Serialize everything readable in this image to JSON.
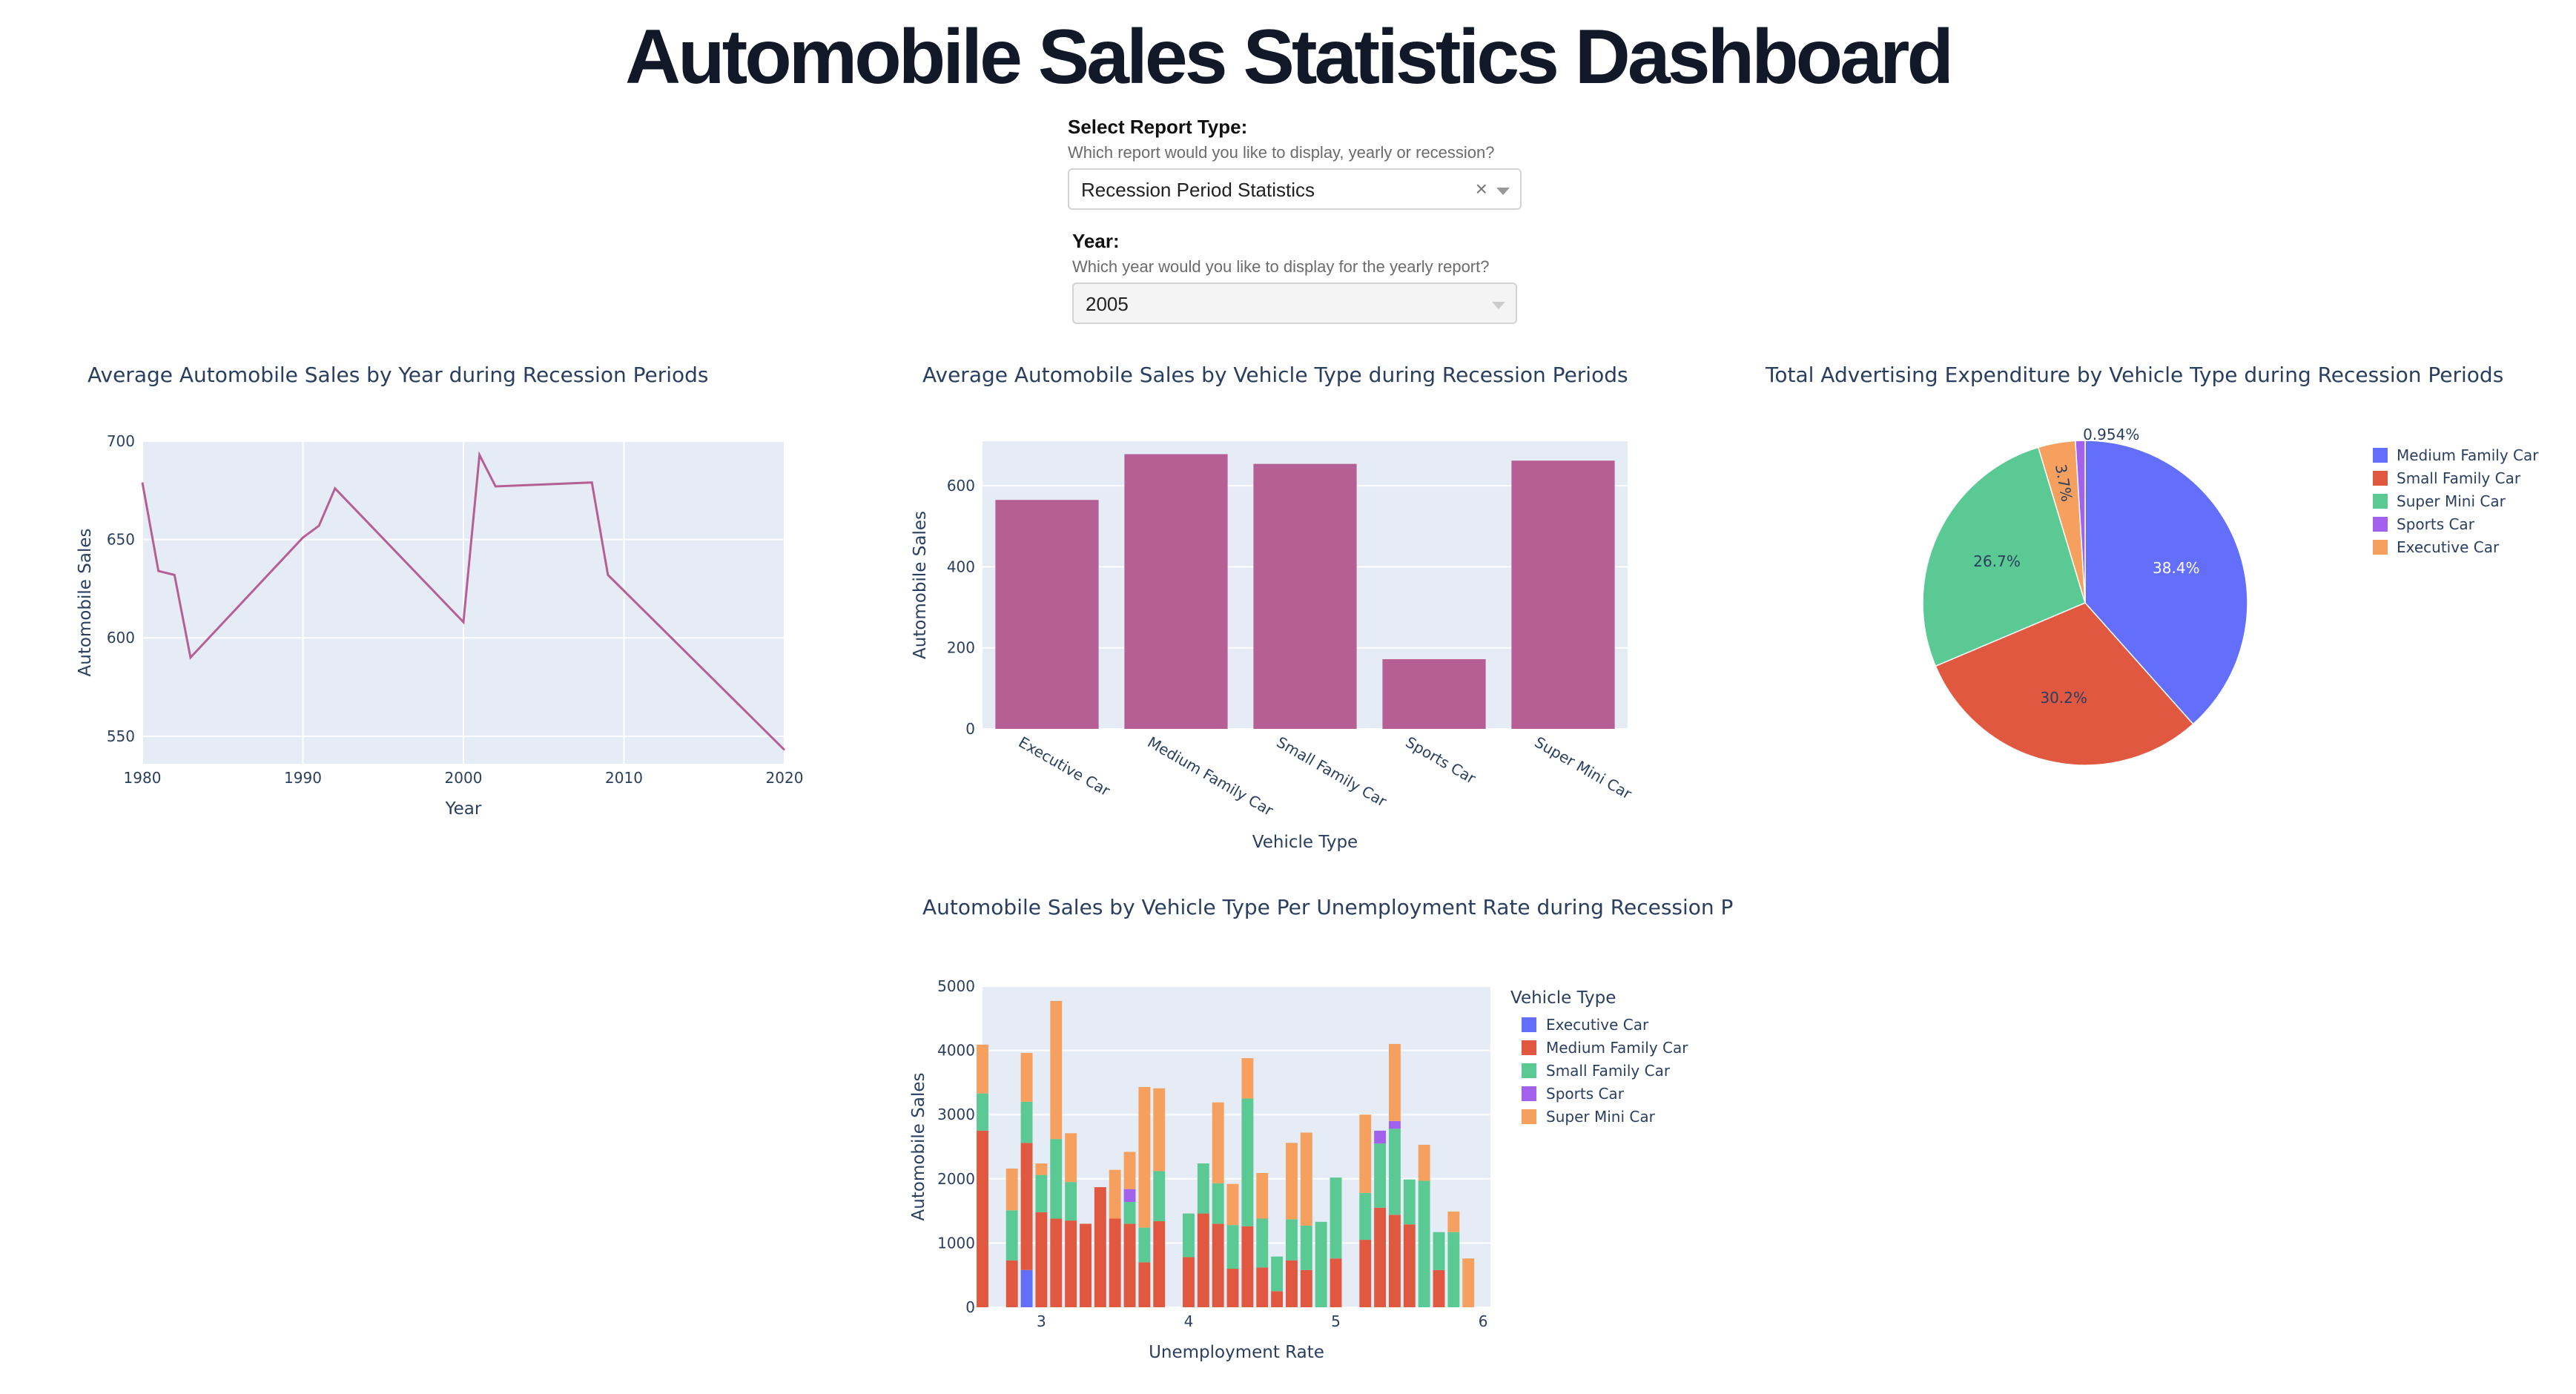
{
  "page": {
    "title": "Automobile Sales Statistics Dashboard"
  },
  "controls": {
    "report": {
      "label": "Select Report Type:",
      "help": "Which report would you like to display, yearly or recession?",
      "value": "Recession Period Statistics"
    },
    "year": {
      "label": "Year:",
      "help": "Which year would you like to display for the yearly report?",
      "value": "2005"
    }
  },
  "colors": {
    "plot_bg": "#e5ecf6",
    "line": "#b65f94",
    "bar": "#b65f94",
    "text": "#2a3f5f",
    "series": [
      "#636efa",
      "#e0583f",
      "#5ac994",
      "#a262ee",
      "#f5a05e"
    ]
  },
  "chart_data": [
    {
      "type": "line",
      "title": "Average Automobile Sales by Year during Recession Periods",
      "xlabel": "Year",
      "ylabel": "Automobile Sales",
      "x": [
        1980,
        1981,
        1982,
        1983,
        1990,
        1991,
        1992,
        2000,
        2001,
        2002,
        2008,
        2009,
        2020
      ],
      "y": [
        679,
        634,
        632,
        590,
        651,
        657,
        676,
        608,
        693,
        677,
        679,
        632,
        543
      ],
      "xlim": [
        1980,
        2020
      ],
      "ylim": [
        536,
        700
      ],
      "xticks": [
        1980,
        1990,
        2000,
        2010,
        2020
      ],
      "yticks": [
        550,
        600,
        650,
        700
      ],
      "grid": true
    },
    {
      "type": "bar",
      "title": "Average Automobile Sales by Vehicle Type during Recession Periods",
      "xlabel": "Vehicle Type",
      "ylabel": "Automobile Sales",
      "categories": [
        "Executive Car",
        "Medium Family Car",
        "Small Family Car",
        "Sports Car",
        "Super Mini Car"
      ],
      "values": [
        565,
        678,
        654,
        172,
        662
      ],
      "ylim": [
        0,
        710
      ],
      "yticks": [
        0,
        200,
        400,
        600
      ],
      "grid": true
    },
    {
      "type": "pie",
      "title": "Total Advertising Expenditure by Vehicle Type during Recession Periods",
      "labels": [
        "Medium Family Car",
        "Small Family Car",
        "Super Mini Car",
        "Sports Car",
        "Executive Car"
      ],
      "values": [
        38.4,
        30.2,
        26.7,
        3.7,
        0.954
      ],
      "text_labels": [
        "38.4%",
        "30.2%",
        "26.7%",
        "3.7%",
        "0.954%"
      ],
      "legend": "right"
    },
    {
      "type": "bar",
      "stacked": true,
      "title": "Automobile Sales by Vehicle Type Per Unemployment Rate during Recession P",
      "xlabel": "Unemployment Rate",
      "ylabel": "Automobile Sales",
      "legend_title": "Vehicle Type",
      "xlim": [
        2.6,
        6.05
      ],
      "ylim": [
        0,
        5000
      ],
      "xticks": [
        3,
        4,
        5,
        6
      ],
      "yticks": [
        0,
        1000,
        2000,
        3000,
        4000,
        5000
      ],
      "series": [
        {
          "name": "Executive Car",
          "x": [
            2.9
          ],
          "values": [
            580
          ]
        },
        {
          "name": "Medium Family Car",
          "x": [
            2.6,
            2.8,
            2.9,
            3.0,
            3.1,
            3.2,
            3.3,
            3.4,
            3.5,
            3.6,
            3.7,
            3.8,
            4.0,
            4.1,
            4.2,
            4.3,
            4.4,
            4.5,
            4.6,
            4.7,
            4.8,
            5.0,
            5.2,
            5.3,
            5.4,
            5.5,
            5.7
          ],
          "values": [
            2750,
            730,
            1980,
            1480,
            1380,
            1350,
            1300,
            1870,
            1380,
            1300,
            700,
            1340,
            780,
            1460,
            1300,
            600,
            1260,
            620,
            250,
            730,
            580,
            760,
            1050,
            1550,
            1440,
            1290,
            580
          ]
        },
        {
          "name": "Small Family Car",
          "x": [
            2.6,
            2.8,
            2.9,
            3.0,
            3.1,
            3.2,
            3.6,
            3.7,
            3.8,
            4.0,
            4.1,
            4.2,
            4.3,
            4.4,
            4.5,
            4.6,
            4.7,
            4.8,
            4.9,
            5.0,
            5.2,
            5.3,
            5.4,
            5.5,
            5.6,
            5.7,
            5.8
          ],
          "values": [
            580,
            780,
            640,
            580,
            1240,
            600,
            340,
            540,
            780,
            680,
            780,
            630,
            680,
            1990,
            760,
            540,
            640,
            690,
            1330,
            1260,
            730,
            1000,
            1340,
            700,
            1970,
            590,
            1170
          ]
        },
        {
          "name": "Sports Car",
          "x": [
            3.6,
            5.3,
            5.4
          ],
          "values": [
            200,
            200,
            120
          ]
        },
        {
          "name": "Super Mini Car",
          "x": [
            2.6,
            2.8,
            2.9,
            3.0,
            3.1,
            3.2,
            3.5,
            3.6,
            3.7,
            3.8,
            4.2,
            4.3,
            4.4,
            4.5,
            4.7,
            4.8,
            5.2,
            5.4,
            5.6,
            5.8,
            5.9
          ],
          "values": [
            760,
            650,
            760,
            180,
            2150,
            760,
            760,
            580,
            2190,
            1290,
            1260,
            640,
            630,
            710,
            1190,
            1450,
            1220,
            1200,
            560,
            320,
            760
          ]
        }
      ]
    }
  ]
}
